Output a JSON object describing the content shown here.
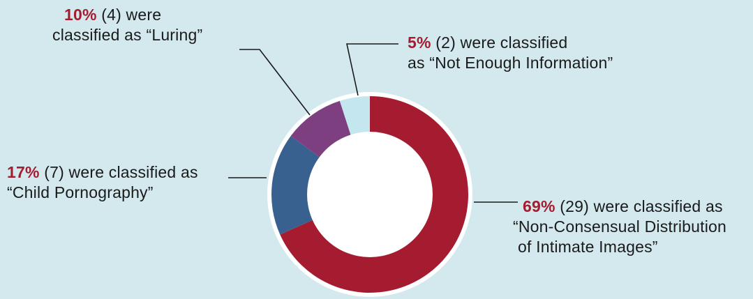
{
  "chart_data": {
    "type": "pie",
    "style": "donut",
    "title": "",
    "slices": [
      {
        "key": "ncdii",
        "value": 69,
        "color": "#a51c30",
        "pct_label": "69%",
        "line1": " (29) were classified as",
        "line2": "“Non-Consensual Distribution",
        "line3": " of Intimate Images”"
      },
      {
        "key": "child",
        "value": 17,
        "color": "#386190",
        "pct_label": "17%",
        "line1": " (7) were classified as",
        "line2": "“Child Pornography”"
      },
      {
        "key": "luring",
        "value": 10,
        "color": "#7e3f80",
        "pct_label": "10%",
        "line1": " (4) were",
        "line2": "classified as “Luring”"
      },
      {
        "key": "nei",
        "value": 5,
        "color": "#c4e6ee",
        "pct_label": "5%",
        "line1": " (2) were classified",
        "line2": "as “Not Enough Information”"
      }
    ]
  }
}
